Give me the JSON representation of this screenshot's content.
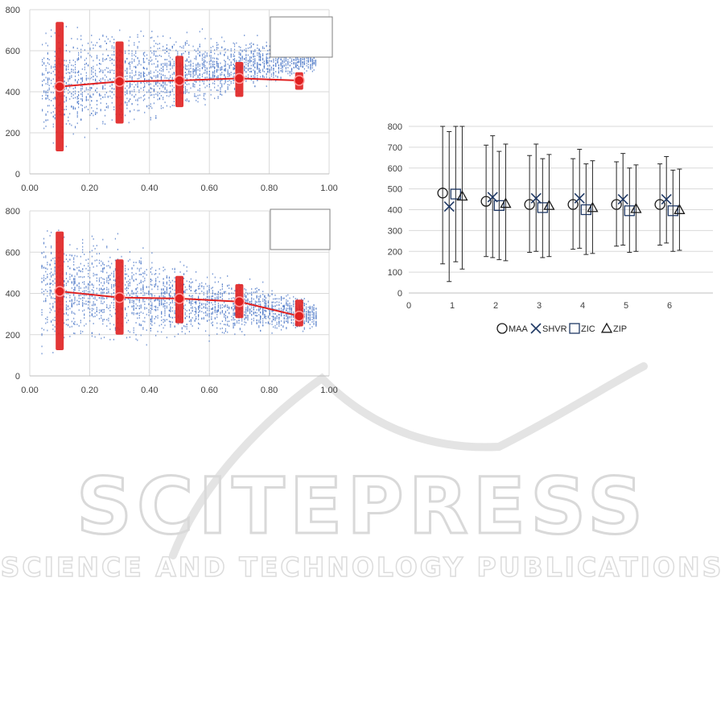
{
  "watermark": {
    "text_big": "SCITEPRESS",
    "text_small": "SCIENCE AND TECHNOLOGY PUBLICATIONS",
    "color": "#d4d4d4"
  },
  "chart_data": [
    {
      "type": "scatter",
      "title": "",
      "xlabel": "",
      "ylabel": "",
      "xlim": [
        0,
        1
      ],
      "ylim": [
        0,
        800
      ],
      "x_ticks": [
        "0.00",
        "0.20",
        "0.40",
        "0.60",
        "0.80",
        "1.00"
      ],
      "y_ticks": [
        "0",
        "200",
        "400",
        "600",
        "800"
      ],
      "grid": true,
      "legend": "top-right (empty box)",
      "scatter_color": "#4472c4",
      "mean_line_color": "#e02020",
      "mean_line": {
        "x": [
          0.1,
          0.3,
          0.5,
          0.7,
          0.9
        ],
        "y": [
          425,
          450,
          455,
          465,
          455
        ],
        "band_low": [
          110,
          245,
          325,
          375,
          410
        ],
        "band_high": [
          740,
          645,
          575,
          545,
          495
        ]
      }
    },
    {
      "type": "scatter",
      "title": "",
      "xlabel": "",
      "ylabel": "",
      "xlim": [
        0,
        1
      ],
      "ylim": [
        0,
        800
      ],
      "x_ticks": [
        "0.00",
        "0.20",
        "0.40",
        "0.60",
        "0.80",
        "1.00"
      ],
      "y_ticks": [
        "0",
        "200",
        "400",
        "600",
        "800"
      ],
      "grid": true,
      "legend": "top-right (empty box)",
      "scatter_color": "#4472c4",
      "mean_line_color": "#e02020",
      "mean_line": {
        "x": [
          0.1,
          0.3,
          0.5,
          0.7,
          0.9
        ],
        "y": [
          410,
          380,
          375,
          360,
          290
        ],
        "band_low": [
          125,
          200,
          255,
          280,
          240
        ],
        "band_high": [
          700,
          565,
          485,
          445,
          370
        ]
      }
    },
    {
      "type": "scatter",
      "title": "",
      "xlabel": "",
      "ylabel": "",
      "xlim": [
        0,
        7
      ],
      "ylim": [
        0,
        800
      ],
      "x_ticks": [
        "0",
        "1",
        "2",
        "3",
        "4",
        "5",
        "6"
      ],
      "y_ticks": [
        "0",
        "100",
        "200",
        "300",
        "400",
        "500",
        "600",
        "700",
        "800"
      ],
      "grid": true,
      "legend": "bottom",
      "categories": [
        1,
        2,
        3,
        4,
        5,
        6
      ],
      "series": [
        {
          "name": "MAA",
          "marker": "circle",
          "offset": -0.22,
          "values": [
            480,
            440,
            425,
            425,
            425,
            425
          ],
          "err_low": [
            140,
            175,
            195,
            210,
            225,
            230
          ],
          "err_high": [
            800,
            710,
            660,
            645,
            630,
            620
          ]
        },
        {
          "name": "SHVR",
          "marker": "x",
          "offset": -0.07,
          "values": [
            415,
            460,
            455,
            455,
            450,
            450
          ],
          "err_low": [
            55,
            170,
            200,
            215,
            230,
            240
          ],
          "err_high": [
            775,
            755,
            715,
            690,
            670,
            655
          ]
        },
        {
          "name": "ZIC",
          "marker": "square",
          "offset": 0.08,
          "values": [
            475,
            420,
            410,
            400,
            395,
            395
          ],
          "err_low": [
            150,
            160,
            170,
            185,
            195,
            200
          ],
          "err_high": [
            800,
            680,
            645,
            620,
            600,
            590
          ]
        },
        {
          "name": "ZIP",
          "marker": "triangle",
          "offset": 0.23,
          "values": [
            465,
            430,
            420,
            410,
            405,
            400
          ],
          "err_low": [
            115,
            155,
            175,
            190,
            200,
            205
          ],
          "err_high": [
            800,
            715,
            665,
            635,
            615,
            595
          ]
        }
      ]
    }
  ]
}
